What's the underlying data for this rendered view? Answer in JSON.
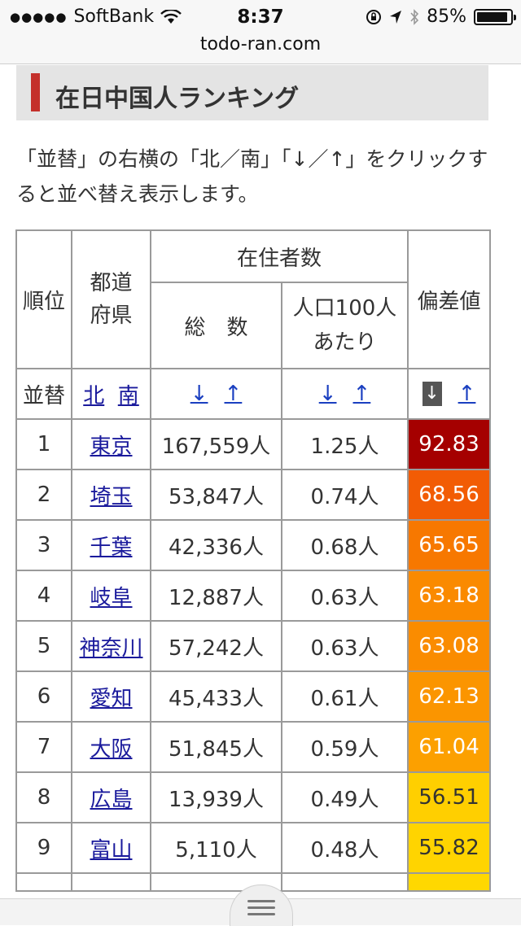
{
  "status": {
    "carrier": "SoftBank",
    "time": "8:37",
    "battery": "85%",
    "battery_level": 0.85,
    "signal_icon": "signal-dots-icon",
    "wifi_icon": "wifi-icon"
  },
  "url": "todo-ran.com",
  "heading": "在日中国人ランキング",
  "description": "「並替」の右横の「北／南」「↓／↑」をクリックすると並べ替え表示します。",
  "table": {
    "headers": {
      "rank": "順位",
      "pref": "都道府県",
      "residents": "在住者数",
      "total": "総　数",
      "per100": "人口100人あたり",
      "deviation": "偏差値",
      "sort": "並替",
      "north": "北",
      "south": "南",
      "down": "↓",
      "up": "↑"
    },
    "rows": [
      {
        "rank": "1",
        "pref": "東京",
        "total": "167,559人",
        "per100": "1.25人",
        "deviation": "92.83",
        "color": "#a50000"
      },
      {
        "rank": "2",
        "pref": "埼玉",
        "total": "53,847人",
        "per100": "0.74人",
        "deviation": "68.56",
        "color": "#f25c04"
      },
      {
        "rank": "3",
        "pref": "千葉",
        "total": "42,336人",
        "per100": "0.68人",
        "deviation": "65.65",
        "color": "#f77800"
      },
      {
        "rank": "4",
        "pref": "岐阜",
        "total": "12,887人",
        "per100": "0.63人",
        "deviation": "63.18",
        "color": "#fa8a00"
      },
      {
        "rank": "5",
        "pref": "神奈川",
        "total": "57,242人",
        "per100": "0.63人",
        "deviation": "63.08",
        "color": "#fa8c00"
      },
      {
        "rank": "6",
        "pref": "愛知",
        "total": "45,433人",
        "per100": "0.61人",
        "deviation": "62.13",
        "color": "#fb9500"
      },
      {
        "rank": "7",
        "pref": "大阪",
        "total": "51,845人",
        "per100": "0.59人",
        "deviation": "61.04",
        "color": "#fca000"
      },
      {
        "rank": "8",
        "pref": "広島",
        "total": "13,939人",
        "per100": "0.49人",
        "deviation": "56.51",
        "color": "#ffcf00"
      },
      {
        "rank": "9",
        "pref": "富山",
        "total": "5,110人",
        "per100": "0.48人",
        "deviation": "55.82",
        "color": "#ffd400"
      }
    ]
  }
}
